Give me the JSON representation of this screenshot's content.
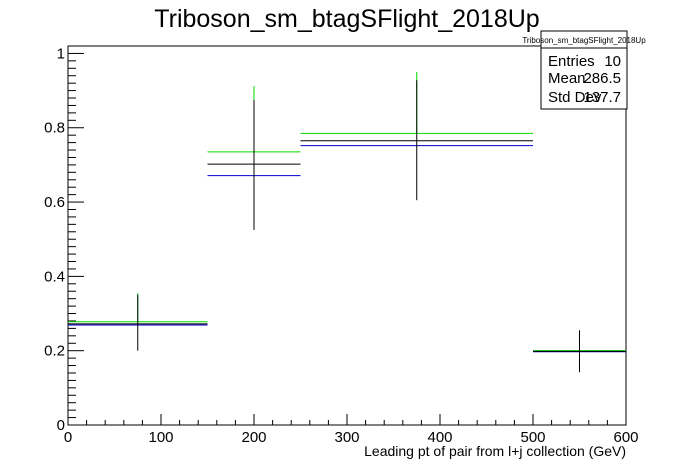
{
  "chart_data": {
    "type": "histogram",
    "title": "Triboson_sm_btagSFlight_2018Up",
    "xlabel": "Leading pt of pair from l+j collection (GeV)",
    "ylabel": "",
    "xlim": [
      0,
      600
    ],
    "ylim": [
      0,
      1.02
    ],
    "x_ticks": [
      "0",
      "100",
      "200",
      "300",
      "400",
      "500",
      "600"
    ],
    "y_ticks": [
      "0",
      "0.2",
      "0.4",
      "0.6",
      "0.8",
      "1"
    ],
    "grid": false,
    "series": [
      {
        "color": "#000000",
        "bins": [
          {
            "x_low": 0,
            "x_high": 150,
            "x_center": 75,
            "value": 0.272,
            "err_low": 0.2,
            "err_high": 0.35
          },
          {
            "x_low": 150,
            "x_high": 250,
            "x_center": 200,
            "value": 0.702,
            "err_low": 0.525,
            "err_high": 0.875
          },
          {
            "x_low": 250,
            "x_high": 500,
            "x_center": 375,
            "value": 0.765,
            "err_low": 0.605,
            "err_high": 0.928
          },
          {
            "x_low": 500,
            "x_high": 600,
            "x_center": 550,
            "value": 0.198,
            "err_low": 0.142,
            "err_high": 0.255
          }
        ]
      },
      {
        "color": "#00dd00",
        "bins": [
          {
            "x_low": 0,
            "x_high": 150,
            "x_center": 75,
            "value": 0.278,
            "err_high": 0.355
          },
          {
            "x_low": 150,
            "x_high": 250,
            "x_center": 200,
            "value": 0.735,
            "err_high": 0.912
          },
          {
            "x_low": 250,
            "x_high": 500,
            "x_center": 375,
            "value": 0.785,
            "err_high": 0.95
          },
          {
            "x_low": 500,
            "x_high": 600,
            "x_center": 550,
            "value": 0.2
          }
        ]
      },
      {
        "color": "#0000cc",
        "bins": [
          {
            "x_low": 0,
            "x_high": 150,
            "x_center": 75,
            "value": 0.269
          },
          {
            "x_low": 150,
            "x_high": 250,
            "x_center": 200,
            "value": 0.671
          },
          {
            "x_low": 250,
            "x_high": 500,
            "x_center": 375,
            "value": 0.752
          },
          {
            "x_low": 500,
            "x_high": 600,
            "x_center": 550,
            "value": 0.197
          }
        ]
      }
    ],
    "stats_box": {
      "name": "Triboson_sm_btagSFlight_2018Up",
      "rows": [
        {
          "label": "Entries",
          "value": "10"
        },
        {
          "label": "Mean",
          "value": "286.5"
        },
        {
          "label": "Std Dev",
          "value": "137.7"
        }
      ]
    }
  }
}
